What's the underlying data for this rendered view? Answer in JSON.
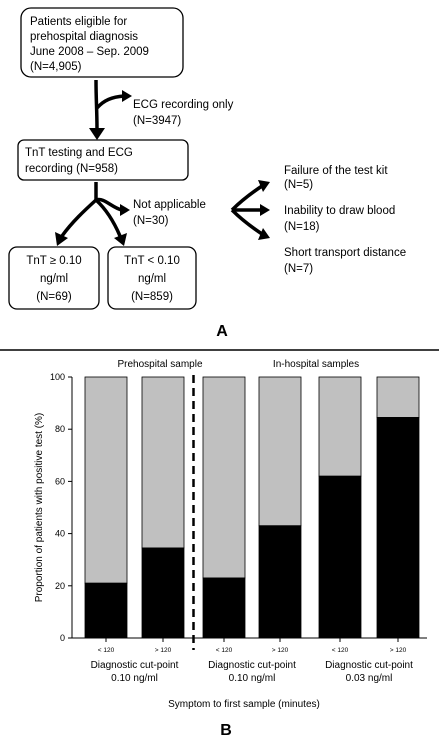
{
  "flowchart": {
    "box_eligible": [
      "Patients eligible for",
      "prehospital diagnosis",
      "June 2008 – Sep. 2009",
      "(N=4,905)"
    ],
    "ecg_only": [
      "ECG recording only",
      "(N=3947)"
    ],
    "box_tnt": [
      "TnT testing  and ECG",
      "recording (N=958)"
    ],
    "not_applicable": [
      "Not applicable",
      "(N=30)"
    ],
    "reasons": [
      [
        "Failure of the test kit",
        "(N=5)"
      ],
      [
        "Inability to draw blood",
        "(N=18)"
      ],
      [
        "Short transport distance",
        "(N=7)"
      ]
    ],
    "box_high": [
      "TnT ≥ 0.10",
      "ng/ml",
      "(N=69)"
    ],
    "box_low": [
      "TnT < 0.10",
      "ng/ml",
      "(N=859)"
    ],
    "panel_label": "A"
  },
  "chart_data": {
    "type": "bar",
    "stacked": true,
    "panel_label": "B",
    "section_labels": [
      "Prehospital sample",
      "In-hospital samples"
    ],
    "categories": [
      "< 120",
      "> 120",
      "< 120",
      "> 120",
      "< 120",
      "> 120"
    ],
    "group_labels": [
      [
        "Diagnostic cut-point",
        "0.10 ng/ml"
      ],
      [
        "Diagnostic cut-point",
        "0.10 ng/ml"
      ],
      [
        "Diagnostic cut-point",
        "0.03 ng/ml"
      ]
    ],
    "series": [
      {
        "values": [
          21,
          34.5,
          23,
          43,
          62,
          84.5
        ],
        "color": "#000000"
      },
      {
        "values": [
          79,
          65.5,
          77,
          57,
          38,
          15.5
        ],
        "color": "#c0c0c0"
      }
    ],
    "ylabel": "Proportion of patients with positive test  (%)",
    "xlabel": "Symptom to first sample (minutes)",
    "ylim": [
      0,
      100
    ],
    "yticks": [
      "0",
      "20",
      "40",
      "60",
      "80",
      "100"
    ],
    "divider_after_category": 2
  }
}
